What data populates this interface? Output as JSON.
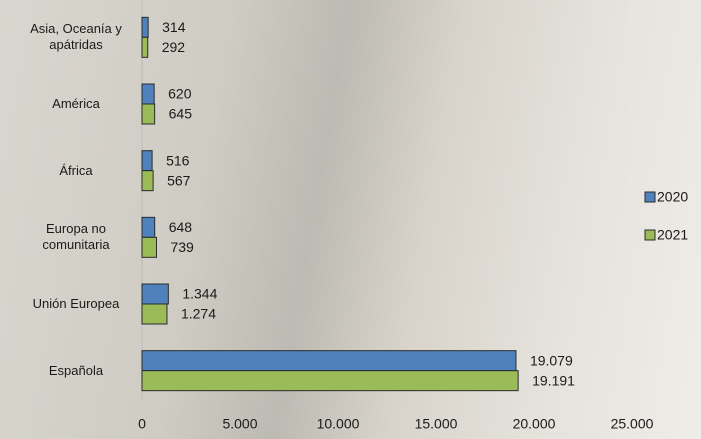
{
  "chart_data": {
    "type": "bar",
    "orientation": "horizontal",
    "categories": [
      "Asia, Oceanía y apátridas",
      "América",
      "África",
      "Europa no comunitaria",
      "Unión Europea",
      "Española"
    ],
    "series": [
      {
        "name": "2020",
        "color": "#4f81bd",
        "values": [
          314,
          620,
          516,
          648,
          1344,
          19079
        ],
        "value_labels": [
          "314",
          "620",
          "516",
          "648",
          "1.344",
          "19.079"
        ]
      },
      {
        "name": "2021",
        "color": "#9bbb59",
        "values": [
          292,
          645,
          567,
          739,
          1274,
          19191
        ],
        "value_labels": [
          "292",
          "645",
          "567",
          "739",
          "1.274",
          "19.191"
        ]
      }
    ],
    "xlim": [
      0,
      25000
    ],
    "xticks": [
      0,
      {
        "value": 5000,
        "label": "5.000"
      },
      {
        "value": 10000,
        "label": "10.000"
      },
      {
        "value": 15000,
        "label": "15.000"
      },
      {
        "value": 20000,
        "label": "20.000"
      },
      {
        "value": 25000,
        "label": "25.000"
      }
    ],
    "legend": "right"
  }
}
